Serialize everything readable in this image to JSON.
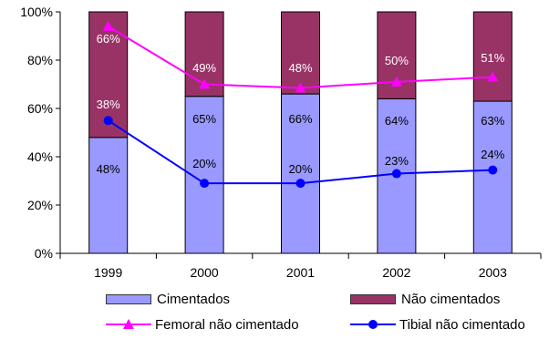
{
  "chart_data": {
    "type": "bar",
    "subtype": "stacked-bar-with-lines",
    "categories": [
      "1999",
      "2000",
      "2001",
      "2002",
      "2003"
    ],
    "ylim": [
      0,
      100
    ],
    "y_ticks": [
      "0%",
      "20%",
      "40%",
      "60%",
      "80%",
      "100%"
    ],
    "grid": false,
    "legend_position": "bottom",
    "series": [
      {
        "name": "Cimentados",
        "kind": "bar",
        "color": "#9999ff",
        "values": [
          48,
          65,
          66,
          64,
          63
        ],
        "labels": [
          "48%",
          "65%",
          "66%",
          "64%",
          "63%"
        ]
      },
      {
        "name": "Não cimentados",
        "kind": "bar",
        "color": "#993366",
        "values": [
          52,
          35,
          34,
          36,
          37
        ],
        "labels": []
      },
      {
        "name": "Femoral não cimentado",
        "kind": "line",
        "color": "#ff00ff",
        "marker": "triangle",
        "values": [
          94,
          70,
          68.5,
          71,
          73
        ],
        "labels": [
          "66%",
          "49%",
          "48%",
          "50%",
          "51%"
        ]
      },
      {
        "name": "Tibial não cimentado",
        "kind": "line",
        "color": "#0000ff",
        "marker": "circle",
        "values": [
          55,
          29,
          29,
          33,
          34.5
        ],
        "labels": [
          "38%",
          "20%",
          "20%",
          "23%",
          "24%"
        ]
      }
    ]
  }
}
